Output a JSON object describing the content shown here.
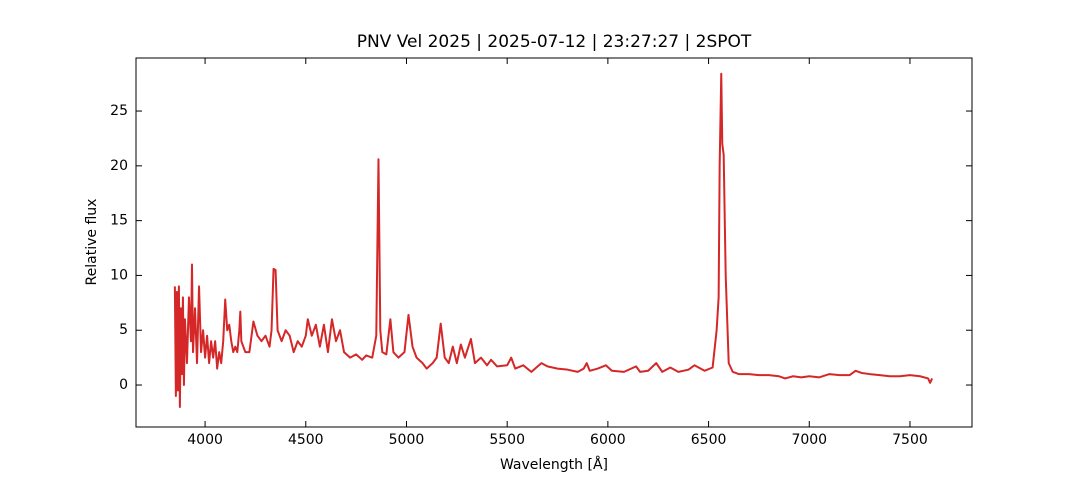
{
  "chart_data": {
    "type": "line",
    "title": "PNV Vel 2025 | 2025-07-12 | 23:27:27 | 2SPOT",
    "xlabel": "Wavelength [Å]",
    "ylabel": "Relative flux",
    "xlim": [
      3657,
      7808
    ],
    "ylim": [
      -3.83,
      29.84
    ],
    "xticks": [
      4000,
      4500,
      5000,
      5500,
      6000,
      6500,
      7000,
      7500
    ],
    "yticks": [
      0,
      5,
      10,
      15,
      20,
      25
    ],
    "grid": false,
    "series": [
      {
        "color": "#d62728",
        "x": [
          3850,
          3855,
          3860,
          3865,
          3870,
          3875,
          3880,
          3885,
          3890,
          3895,
          3900,
          3910,
          3920,
          3930,
          3935,
          3940,
          3950,
          3960,
          3970,
          3980,
          3990,
          4000,
          4010,
          4020,
          4030,
          4040,
          4050,
          4060,
          4070,
          4080,
          4090,
          4100,
          4110,
          4120,
          4130,
          4140,
          4150,
          4160,
          4170,
          4175,
          4180,
          4200,
          4220,
          4240,
          4260,
          4280,
          4300,
          4320,
          4330,
          4340,
          4350,
          4360,
          4380,
          4400,
          4420,
          4440,
          4460,
          4480,
          4500,
          4510,
          4530,
          4550,
          4570,
          4590,
          4610,
          4630,
          4650,
          4670,
          4690,
          4720,
          4750,
          4780,
          4800,
          4830,
          4850,
          4861,
          4866,
          4870,
          4880,
          4900,
          4920,
          4935,
          4960,
          4990,
          5010,
          5030,
          5050,
          5080,
          5100,
          5130,
          5150,
          5170,
          5190,
          5210,
          5230,
          5250,
          5270,
          5290,
          5320,
          5340,
          5370,
          5400,
          5420,
          5450,
          5500,
          5520,
          5540,
          5580,
          5620,
          5670,
          5700,
          5750,
          5800,
          5850,
          5880,
          5895,
          5910,
          5950,
          5990,
          6020,
          6080,
          6140,
          6160,
          6200,
          6240,
          6270,
          6310,
          6350,
          6400,
          6430,
          6480,
          6520,
          6540,
          6550,
          6555,
          6563,
          6568,
          6575,
          6585,
          6600,
          6620,
          6650,
          6700,
          6750,
          6800,
          6850,
          6880,
          6920,
          6960,
          7000,
          7050,
          7100,
          7150,
          7200,
          7230,
          7260,
          7300,
          7350,
          7400,
          7450,
          7500,
          7550,
          7590,
          7600,
          7610
        ],
        "values": [
          9,
          -1,
          8.5,
          -0.5,
          9,
          -2,
          7,
          1,
          8,
          0,
          6,
          2,
          8,
          4,
          11,
          3,
          7,
          2,
          9,
          3,
          5,
          2.5,
          4.5,
          2,
          4,
          2.5,
          4,
          1.5,
          3,
          2,
          4,
          7.8,
          5,
          5.5,
          4,
          3,
          3.5,
          3,
          5,
          6.7,
          4,
          3,
          3,
          5.8,
          4.5,
          4,
          4.5,
          3.5,
          5,
          10.6,
          10.5,
          5,
          4,
          5,
          4.5,
          3,
          4,
          3.5,
          4.5,
          6,
          4.5,
          5.5,
          3.5,
          5.5,
          3,
          6,
          4,
          5,
          3,
          2.5,
          2.8,
          2.3,
          2.7,
          2.5,
          4.5,
          20.6,
          12,
          5,
          3,
          2.8,
          6,
          3,
          2.5,
          3,
          6.4,
          3.5,
          2.5,
          2,
          1.5,
          2,
          2.5,
          5.6,
          2.5,
          2,
          3.5,
          2,
          3.7,
          2.5,
          4.2,
          2,
          2.5,
          1.8,
          2.3,
          1.7,
          1.8,
          2.5,
          1.5,
          1.8,
          1.2,
          2,
          1.7,
          1.5,
          1.4,
          1.2,
          1.5,
          2,
          1.3,
          1.5,
          1.8,
          1.3,
          1.2,
          1.7,
          1.2,
          1.3,
          2,
          1.2,
          1.6,
          1.2,
          1.4,
          1.8,
          1.3,
          1.6,
          5,
          8,
          20,
          28.4,
          22,
          21,
          10,
          2,
          1.2,
          1,
          1,
          0.9,
          0.9,
          0.8,
          0.6,
          0.8,
          0.7,
          0.8,
          0.7,
          1,
          0.9,
          0.9,
          1.3,
          1.1,
          1,
          0.9,
          0.8,
          0.8,
          0.9,
          0.8,
          0.6,
          0.2,
          0.6
        ]
      }
    ]
  }
}
